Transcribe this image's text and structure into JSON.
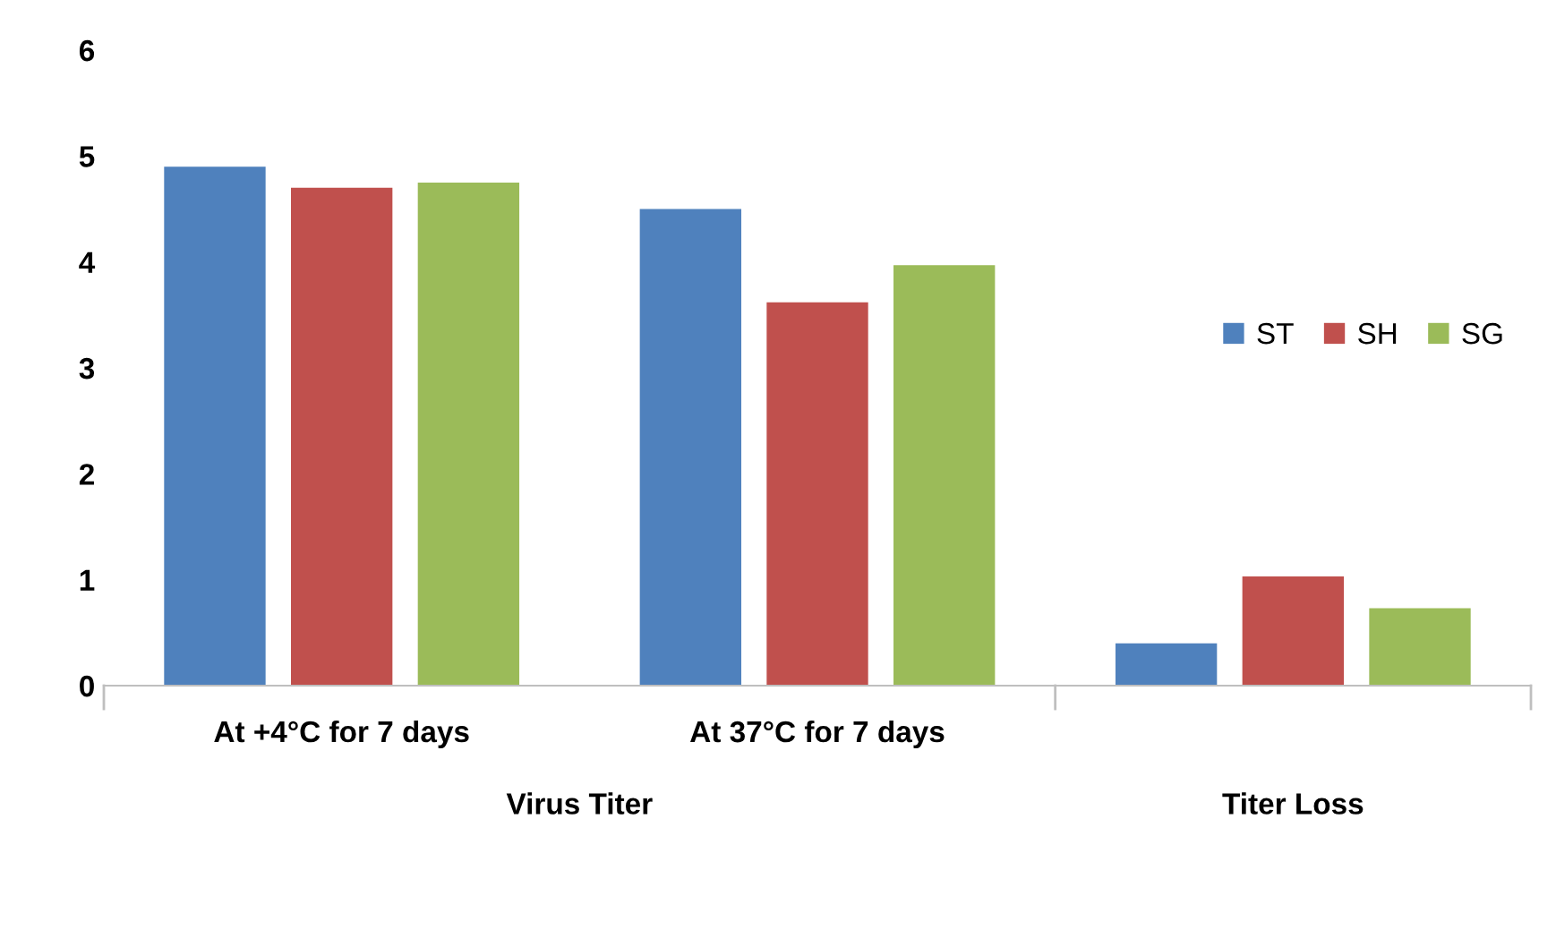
{
  "chart_data": {
    "type": "bar",
    "categories": [
      "At +4°C for 7 days",
      "At 37°C for 7 days",
      null
    ],
    "series": [
      {
        "name": "ST",
        "color": "#4f81bd",
        "values": [
          4.9,
          4.5,
          0.4
        ]
      },
      {
        "name": "SH",
        "color": "#c0504d",
        "values": [
          4.7,
          3.62,
          1.03
        ]
      },
      {
        "name": "SG",
        "color": "#9bbb59",
        "values": [
          4.75,
          3.97,
          0.73
        ]
      }
    ],
    "annotations": [
      "Virus Titer",
      "Titer Loss"
    ],
    "ylim": [
      0,
      6
    ],
    "yticks": [
      0,
      1,
      2,
      3,
      4,
      5,
      6
    ],
    "grid": false,
    "legend": "right"
  }
}
